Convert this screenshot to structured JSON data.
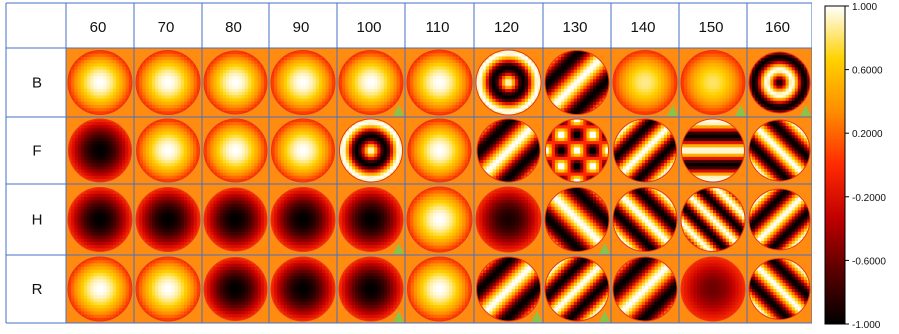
{
  "chart_data": {
    "type": "heatmap",
    "columns": [
      "60",
      "70",
      "80",
      "90",
      "100",
      "110",
      "120",
      "130",
      "140",
      "150",
      "160"
    ],
    "rows": [
      "B",
      "F",
      "H",
      "R"
    ],
    "colorbar": {
      "min": -1.0,
      "max": 1.0,
      "ticks": [
        "1.000",
        "0.6000",
        "0.2000",
        "-0.2000",
        "-0.6000",
        "-1.000"
      ],
      "colormap": "hot",
      "colors": [
        "#000000",
        "#5a0000",
        "#c00000",
        "#ff2a00",
        "#ff8c00",
        "#ffd200",
        "#ffffff"
      ]
    },
    "cell_background": "#ff8c10",
    "grid_color": "#4472c4",
    "marker_color": "#8bc34a",
    "cells": [
      [
        {
          "mode": "disk",
          "sign": 1,
          "marker": false
        },
        {
          "mode": "disk",
          "sign": 1,
          "marker": false
        },
        {
          "mode": "disk",
          "sign": 1,
          "marker": false
        },
        {
          "mode": "disk",
          "sign": 1,
          "marker": false
        },
        {
          "mode": "disk",
          "sign": 1,
          "marker": true
        },
        {
          "mode": "disk",
          "sign": 1,
          "marker": false
        },
        {
          "mode": "ring",
          "sign": 1,
          "marker": false
        },
        {
          "mode": "diag",
          "sign": 1,
          "dir": 1,
          "freq": 1.6,
          "marker": false
        },
        {
          "mode": "disk",
          "sign": 0.85,
          "marker": true
        },
        {
          "mode": "disk",
          "sign": 0.8,
          "marker": true
        },
        {
          "mode": "ring2",
          "sign": 1,
          "marker": true
        }
      ],
      [
        {
          "mode": "disk",
          "sign": -1,
          "marker": false
        },
        {
          "mode": "disk",
          "sign": 1,
          "marker": false
        },
        {
          "mode": "disk",
          "sign": 1,
          "marker": false
        },
        {
          "mode": "disk",
          "sign": 1,
          "marker": false
        },
        {
          "mode": "ring",
          "sign": 1,
          "marker": false
        },
        {
          "mode": "disk",
          "sign": 1,
          "marker": false
        },
        {
          "mode": "diag",
          "sign": 1,
          "dir": 1,
          "freq": 1.6,
          "marker": false
        },
        {
          "mode": "quad",
          "sign": 1,
          "marker": false
        },
        {
          "mode": "diag",
          "sign": 1,
          "dir": 1,
          "freq": 2.0,
          "marker": false
        },
        {
          "mode": "horiz",
          "sign": 1,
          "marker": false
        },
        {
          "mode": "diag",
          "sign": 1,
          "dir": -1,
          "freq": 2.0,
          "marker": false
        }
      ],
      [
        {
          "mode": "disk",
          "sign": -1,
          "marker": false
        },
        {
          "mode": "disk",
          "sign": -1,
          "marker": false
        },
        {
          "mode": "disk",
          "sign": -1,
          "marker": false
        },
        {
          "mode": "disk",
          "sign": -1,
          "marker": false
        },
        {
          "mode": "disk",
          "sign": -1,
          "marker": true
        },
        {
          "mode": "disk",
          "sign": 1,
          "marker": false
        },
        {
          "mode": "disk",
          "sign": -0.9,
          "marker": false
        },
        {
          "mode": "diag",
          "sign": 1,
          "dir": -1,
          "freq": 1.6,
          "marker": true
        },
        {
          "mode": "diag",
          "sign": 1,
          "dir": -1,
          "freq": 2.0,
          "marker": false
        },
        {
          "mode": "diag",
          "sign": 1,
          "dir": -1,
          "freq": 2.6,
          "marker": false
        },
        {
          "mode": "diag",
          "sign": 1,
          "dir": 1,
          "freq": 2.0,
          "marker": false
        }
      ],
      [
        {
          "mode": "disk",
          "sign": 1,
          "marker": false
        },
        {
          "mode": "disk",
          "sign": 1,
          "marker": false
        },
        {
          "mode": "disk",
          "sign": -1,
          "marker": false
        },
        {
          "mode": "disk",
          "sign": -1,
          "marker": false
        },
        {
          "mode": "disk",
          "sign": -1,
          "marker": true
        },
        {
          "mode": "disk",
          "sign": 1,
          "marker": false
        },
        {
          "mode": "diag",
          "sign": 1,
          "dir": 1,
          "freq": 1.6,
          "marker": true
        },
        {
          "mode": "diag",
          "sign": 1,
          "dir": 1,
          "freq": 2.0,
          "marker": true
        },
        {
          "mode": "diag",
          "sign": 1,
          "dir": 1,
          "freq": 1.6,
          "marker": false
        },
        {
          "mode": "disk",
          "sign": -0.6,
          "marker": false
        },
        {
          "mode": "diag",
          "sign": 1,
          "dir": -1,
          "freq": 2.0,
          "marker": false
        }
      ]
    ]
  }
}
